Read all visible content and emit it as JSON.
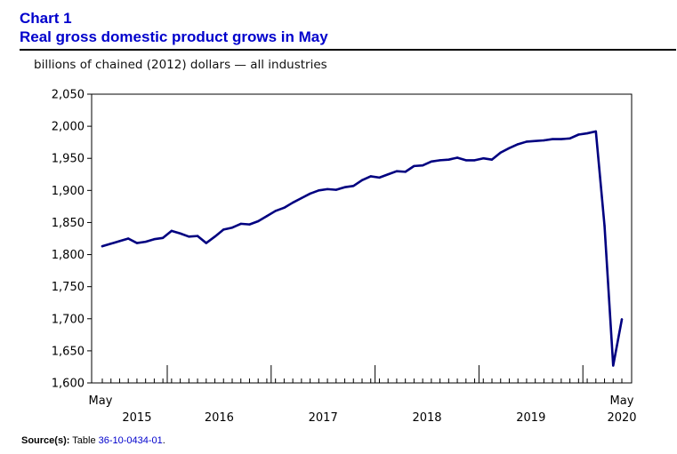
{
  "heading": {
    "chart_number": "Chart 1",
    "title": "Real gross domestic product grows in May"
  },
  "colors": {
    "heading": "#0000cc",
    "series": "#000080",
    "link": "#0000cc"
  },
  "source": {
    "label": "Source(s):",
    "prefix": "Table",
    "table_id": "36-10-0434-01",
    "suffix": "."
  },
  "chart_data": {
    "type": "line",
    "title": "Real gross domestic product grows in May",
    "ylabel": "billions of chained (2012) dollars — all industries",
    "xlabel": "",
    "ylim": [
      1600,
      2050
    ],
    "yticks": [
      1600,
      1650,
      1700,
      1750,
      1800,
      1850,
      1900,
      1950,
      2000,
      2050
    ],
    "ytick_labels": [
      "1,600",
      "1,650",
      "1,700",
      "1,750",
      "1,800",
      "1,850",
      "1,900",
      "1,950",
      "2,000",
      "2,050"
    ],
    "x_start": "2015-05",
    "x_end": "2020-05",
    "start_label": "May",
    "end_label": "May",
    "year_labels": [
      {
        "year": "2015",
        "month_index": 4
      },
      {
        "year": "2016",
        "month_index": 13.5
      },
      {
        "year": "2017",
        "month_index": 25.5
      },
      {
        "year": "2018",
        "month_index": 37.5
      },
      {
        "year": "2019",
        "month_index": 49.5
      },
      {
        "year": "2020",
        "month_index": 60
      }
    ],
    "year_boundaries": [
      7.5,
      19.5,
      31.5,
      43.5,
      55.5
    ],
    "grid": false,
    "legend": "none",
    "series": [
      {
        "name": "all industries",
        "values": [
          1813,
          1817,
          1821,
          1825,
          1818,
          1820,
          1824,
          1826,
          1837,
          1833,
          1828,
          1829,
          1818,
          1828,
          1839,
          1842,
          1848,
          1847,
          1852,
          1860,
          1868,
          1873,
          1881,
          1888,
          1895,
          1900,
          1902,
          1901,
          1905,
          1907,
          1916,
          1922,
          1920,
          1925,
          1930,
          1929,
          1938,
          1939,
          1945,
          1947,
          1948,
          1951,
          1947,
          1947,
          1950,
          1948,
          1959,
          1966,
          1972,
          1976,
          1977,
          1978,
          1980,
          1980,
          1981,
          1987,
          1989,
          1992,
          1845,
          1627,
          1699
        ]
      }
    ]
  }
}
